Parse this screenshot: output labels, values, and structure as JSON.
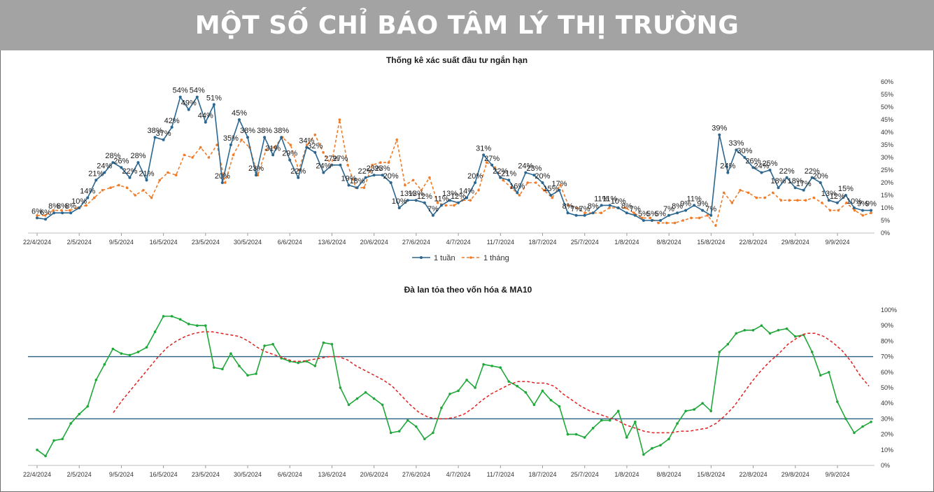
{
  "header": {
    "title": "MỘT SỐ CHỈ BÁO TÂM LÝ THỊ TRƯỜNG"
  },
  "colors": {
    "week": "#2a6690",
    "month": "#f07c2a",
    "breadth": "#1fa83a",
    "ma10": "#e02020",
    "hline": "#2a5f7e"
  },
  "chart_data": [
    {
      "type": "line",
      "title": "Thống kê xác suất đầu tư ngắn hạn",
      "x_ticks": [
        "22/4/2024",
        "2/5/2024",
        "9/5/2024",
        "16/5/2024",
        "23/5/2024",
        "30/5/2024",
        "6/6/2024",
        "13/6/2024",
        "20/6/2024",
        "27/6/2024",
        "4/7/2024",
        "11/7/2024",
        "18/7/2024",
        "25/7/2024",
        "1/8/2024",
        "8/8/2024",
        "15/8/2024",
        "22/8/2024",
        "29/8/2024",
        "9/9/2024"
      ],
      "y_ticks": [
        "0%",
        "5%",
        "10%",
        "15%",
        "20%",
        "25%",
        "30%",
        "35%",
        "40%",
        "45%",
        "50%",
        "55%",
        "60%"
      ],
      "ylim": [
        0,
        60
      ],
      "legend": {
        "position": "bottom"
      },
      "series": [
        {
          "name": "1 tuần",
          "values": [
            6,
            5.5,
            8,
            8,
            8,
            10,
            14,
            21,
            24,
            28,
            26,
            22,
            28,
            21,
            38,
            37,
            42,
            54,
            49,
            54,
            44,
            51,
            20,
            35,
            45,
            38,
            23,
            38,
            31,
            38,
            29,
            22,
            34,
            32,
            24,
            27,
            27,
            19,
            18,
            22,
            23,
            23,
            20,
            10,
            13,
            13,
            12,
            7,
            11,
            13,
            12,
            14,
            20,
            31,
            27,
            22,
            21,
            16,
            24,
            23,
            20,
            15,
            17,
            8,
            7,
            7,
            8,
            11,
            11,
            10,
            8,
            7,
            5,
            5,
            5,
            7,
            8,
            9,
            11,
            9,
            7,
            39,
            24,
            33,
            30,
            26,
            24,
            25,
            18,
            22,
            18,
            17,
            22,
            20,
            13,
            12,
            15,
            10,
            9,
            9
          ],
          "labels": [
            "6%",
            "6%",
            "8%",
            "8%",
            "8%",
            "10%",
            "14%",
            "21%",
            "24%",
            "28%",
            "26%",
            "22%",
            "28%",
            "21%",
            "38%",
            "37%",
            "42%",
            "54%",
            "49%",
            "54%",
            "44%",
            "51%",
            "20%",
            "35%",
            "45%",
            "38%",
            "23%",
            "38%",
            "31%",
            "38%",
            "29%",
            "22%",
            "34%",
            "32%",
            "24%",
            "27%",
            "27%",
            "19%",
            "18%",
            "22%",
            "23%",
            "23%",
            "20%",
            "10%",
            "13%",
            "13%",
            "12%",
            "7%",
            "11%",
            "13%",
            "12%",
            "14%",
            "20%",
            "31%",
            "27%",
            "22%",
            "21%",
            "16%",
            "24%",
            "23%",
            "20%",
            "15%",
            "17%",
            "8%",
            "7%",
            "7%",
            "8%",
            "11%",
            "11%",
            "10%",
            "8%",
            "7%",
            "5%",
            "5%",
            "5%",
            "7%",
            "8%",
            "9%",
            "11%",
            "9%",
            "7%",
            "39%",
            "24%",
            "33%",
            "30%",
            "26%",
            "24%",
            "25%",
            "18%",
            "22%",
            "18%",
            "17%",
            "22%",
            "20%",
            "13%",
            "12%",
            "15%",
            "10%",
            "9%",
            "9%"
          ]
        },
        {
          "name": "1 tháng",
          "values": [
            7,
            7,
            9,
            9,
            9,
            10,
            11,
            14,
            17,
            18,
            19,
            18,
            15,
            17,
            14,
            21,
            24,
            23,
            31,
            30,
            34,
            30,
            35,
            20,
            31,
            37,
            34,
            23,
            33,
            34,
            38,
            35,
            25,
            35,
            39,
            32,
            27,
            45,
            27,
            18,
            18,
            27,
            28,
            28,
            37,
            19,
            21,
            17,
            22,
            12,
            11,
            11,
            13,
            13,
            17,
            28,
            26,
            21,
            18,
            15,
            20,
            20,
            17,
            14,
            19,
            11,
            10,
            8,
            8,
            8,
            10,
            10,
            10,
            8,
            6,
            6,
            4,
            4,
            4,
            5,
            6,
            6,
            7,
            3,
            16,
            12,
            17,
            16,
            14,
            14,
            16,
            13,
            13,
            13,
            13,
            14,
            12,
            9,
            9,
            12,
            9,
            7,
            8
          ]
        }
      ]
    },
    {
      "type": "line",
      "title": "Đà lan tỏa theo vốn hóa & MA10",
      "x_ticks": [
        "22/4/2024",
        "2/5/2024",
        "9/5/2024",
        "16/5/2024",
        "23/5/2024",
        "30/5/2024",
        "6/6/2024",
        "13/6/2024",
        "20/6/2024",
        "27/6/2024",
        "4/7/2024",
        "11/7/2024",
        "18/7/2024",
        "25/7/2024",
        "1/8/2024",
        "8/8/2024",
        "15/8/2024",
        "22/8/2024",
        "29/8/2024",
        "9/9/2024"
      ],
      "y_ticks": [
        "0%",
        "10%",
        "20%",
        "30%",
        "40%",
        "50%",
        "60%",
        "70%",
        "80%",
        "90%",
        "100%"
      ],
      "ylim": [
        0,
        100
      ],
      "hlines": [
        70,
        30
      ],
      "series": [
        {
          "values": [
            10,
            6,
            16,
            17,
            27,
            33,
            38,
            55,
            65,
            75,
            72,
            71,
            73,
            76,
            86,
            96,
            96,
            94,
            91,
            90,
            90,
            63,
            62,
            72,
            64,
            58,
            59,
            77,
            78,
            69,
            67,
            66,
            67,
            64,
            79,
            78,
            50,
            39,
            43,
            47,
            43,
            39,
            21,
            22,
            29,
            25,
            17,
            21,
            37,
            46,
            48,
            55,
            50,
            65,
            64,
            63,
            54,
            51,
            47,
            39,
            48,
            42,
            38,
            20,
            20,
            18,
            24,
            29,
            29,
            35,
            18,
            28,
            7,
            11,
            13,
            17,
            27,
            35,
            36,
            40,
            35,
            73,
            78,
            85,
            87,
            87,
            90,
            85,
            87,
            88,
            83,
            84,
            73,
            58,
            60,
            41,
            30,
            21,
            25,
            28
          ]
        },
        {
          "values": [
            34,
            42,
            49,
            56,
            63,
            70,
            76,
            80,
            83,
            85,
            86,
            86,
            85,
            84,
            83,
            80,
            76,
            73,
            71,
            69,
            67,
            67,
            68,
            69,
            70,
            70,
            68,
            64,
            61,
            58,
            55,
            51,
            45,
            39,
            34,
            31,
            30,
            30,
            31,
            33,
            37,
            42,
            46,
            49,
            52,
            54,
            54,
            53,
            53,
            51,
            46,
            42,
            38,
            35,
            33,
            31,
            29,
            26,
            24,
            22,
            21,
            21,
            21,
            22,
            22,
            23,
            24,
            27,
            32,
            38,
            46,
            54,
            61,
            67,
            72,
            78,
            82,
            85,
            85,
            83,
            79,
            74,
            67,
            58,
            51
          ]
        }
      ]
    }
  ]
}
